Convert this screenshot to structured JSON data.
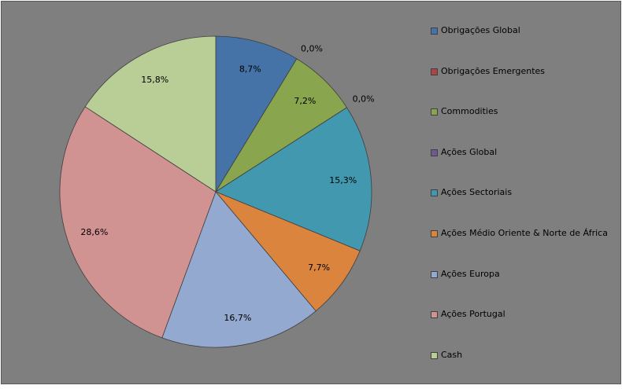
{
  "chart_data": {
    "type": "pie",
    "title": "",
    "legend_position": "right",
    "slices": [
      {
        "name": "Obrigações Global",
        "value": 8.7,
        "label": "8,7%",
        "color": "#4572a7"
      },
      {
        "name": "Obrigações Emergentes",
        "value": 0.0,
        "label": "0,0%",
        "color": "#aa4643"
      },
      {
        "name": "Commodities",
        "value": 7.2,
        "label": "7,2%",
        "color": "#89a54e"
      },
      {
        "name": "Ações Global",
        "value": 0.0,
        "label": "0,0%",
        "color": "#71588f"
      },
      {
        "name": "Ações Sectoriais",
        "value": 15.3,
        "label": "15,3%",
        "color": "#4198af"
      },
      {
        "name": "Ações Médio Oriente & Norte de África",
        "value": 7.7,
        "label": "7,7%",
        "color": "#db843d"
      },
      {
        "name": "Ações Europa",
        "value": 16.7,
        "label": "16,7%",
        "color": "#93a9cf"
      },
      {
        "name": "Ações Portugal",
        "value": 28.6,
        "label": "28,6%",
        "color": "#d19392"
      },
      {
        "name": "Cash",
        "value": 15.8,
        "label": "15,8%",
        "color": "#b9cd96"
      }
    ]
  }
}
